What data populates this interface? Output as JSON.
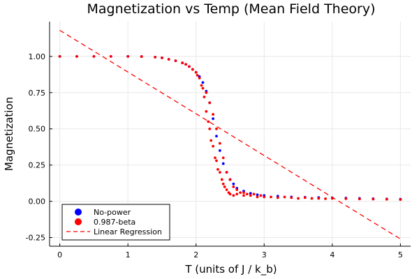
{
  "chart_data": {
    "type": "scatter",
    "title": "Magnetization vs Temp (Mean Field Theory)",
    "xlabel": "T (units of J / k_b)",
    "ylabel": "Magnetization",
    "xlim": [
      -0.15,
      5.15
    ],
    "ylim": [
      -0.31,
      1.24
    ],
    "xticks": [
      0,
      1,
      2,
      3,
      4,
      5
    ],
    "yticks": [
      -0.25,
      0.0,
      0.25,
      0.5,
      0.75,
      1.0
    ],
    "xtick_labels": [
      "0",
      "1",
      "2",
      "3",
      "4",
      "5"
    ],
    "ytick_labels": [
      "-0.25",
      "0.00",
      "0.25",
      "0.50",
      "0.75",
      "1.00"
    ],
    "grid": true,
    "legend_position": "bottom-left",
    "series": [
      {
        "name": "No-power",
        "type": "scatter",
        "color": "#0000ff",
        "x": [
          0.0,
          0.25,
          0.5,
          0.75,
          1.0,
          1.2,
          1.4,
          1.5,
          1.6,
          1.7,
          1.8,
          1.85,
          1.9,
          1.95,
          2.0,
          2.05,
          2.1,
          2.15,
          2.2,
          2.25,
          2.3,
          2.35,
          2.4,
          2.45,
          2.5,
          2.55,
          2.6,
          2.7,
          2.8,
          2.9,
          3.0,
          3.2,
          3.4,
          3.6,
          3.8,
          4.0,
          4.2,
          4.4,
          4.6,
          4.8,
          5.0
        ],
        "y": [
          1.0,
          1.0,
          1.0,
          1.0,
          1.0,
          0.999,
          0.995,
          0.99,
          0.98,
          0.97,
          0.955,
          0.945,
          0.93,
          0.91,
          0.89,
          0.86,
          0.82,
          0.76,
          0.68,
          0.57,
          0.45,
          0.35,
          0.26,
          0.2,
          0.15,
          0.12,
          0.09,
          0.07,
          0.055,
          0.045,
          0.04,
          0.035,
          0.03,
          0.028,
          0.026,
          0.024,
          0.022,
          0.02,
          0.018,
          0.016,
          0.015
        ]
      },
      {
        "name": "0.987-beta",
        "type": "scatter",
        "color": "#ff0000",
        "x": [
          0.0,
          0.25,
          0.5,
          0.75,
          1.0,
          1.2,
          1.4,
          1.5,
          1.6,
          1.7,
          1.8,
          1.85,
          1.9,
          1.95,
          2.0,
          2.02,
          2.05,
          2.08,
          2.1,
          2.12,
          2.15,
          2.15,
          2.18,
          2.2,
          2.2,
          2.22,
          2.25,
          2.25,
          2.28,
          2.3,
          2.3,
          2.32,
          2.35,
          2.35,
          2.38,
          2.4,
          2.4,
          2.42,
          2.45,
          2.45,
          2.48,
          2.5,
          2.5,
          2.55,
          2.55,
          2.6,
          2.6,
          2.65,
          2.7,
          2.7,
          2.75,
          2.8,
          2.85,
          2.9,
          2.95,
          3.0,
          3.1,
          3.2,
          3.3,
          3.4,
          3.5,
          3.6,
          3.7,
          3.8,
          3.9,
          4.0,
          4.2,
          4.4,
          4.6,
          4.8,
          5.0
        ],
        "y": [
          1.0,
          1.0,
          1.0,
          1.0,
          1.0,
          0.999,
          0.995,
          0.99,
          0.98,
          0.97,
          0.955,
          0.945,
          0.93,
          0.91,
          0.89,
          0.87,
          0.85,
          0.8,
          0.78,
          0.72,
          0.62,
          0.75,
          0.55,
          0.5,
          0.68,
          0.42,
          0.38,
          0.6,
          0.3,
          0.28,
          0.5,
          0.22,
          0.2,
          0.4,
          0.15,
          0.12,
          0.3,
          0.1,
          0.08,
          0.2,
          0.06,
          0.05,
          0.15,
          0.04,
          0.1,
          0.05,
          0.08,
          0.06,
          0.04,
          0.06,
          0.05,
          0.04,
          0.05,
          0.03,
          0.04,
          0.03,
          0.03,
          0.025,
          0.03,
          0.025,
          0.02,
          0.025,
          0.02,
          0.02,
          0.018,
          0.02,
          0.018,
          0.016,
          0.015,
          0.014,
          0.012
        ]
      },
      {
        "name": "Linear Regression",
        "type": "line",
        "style": "dashed",
        "color": "#ff0000",
        "x": [
          0.0,
          5.0
        ],
        "y": [
          1.18,
          -0.26
        ]
      }
    ]
  }
}
